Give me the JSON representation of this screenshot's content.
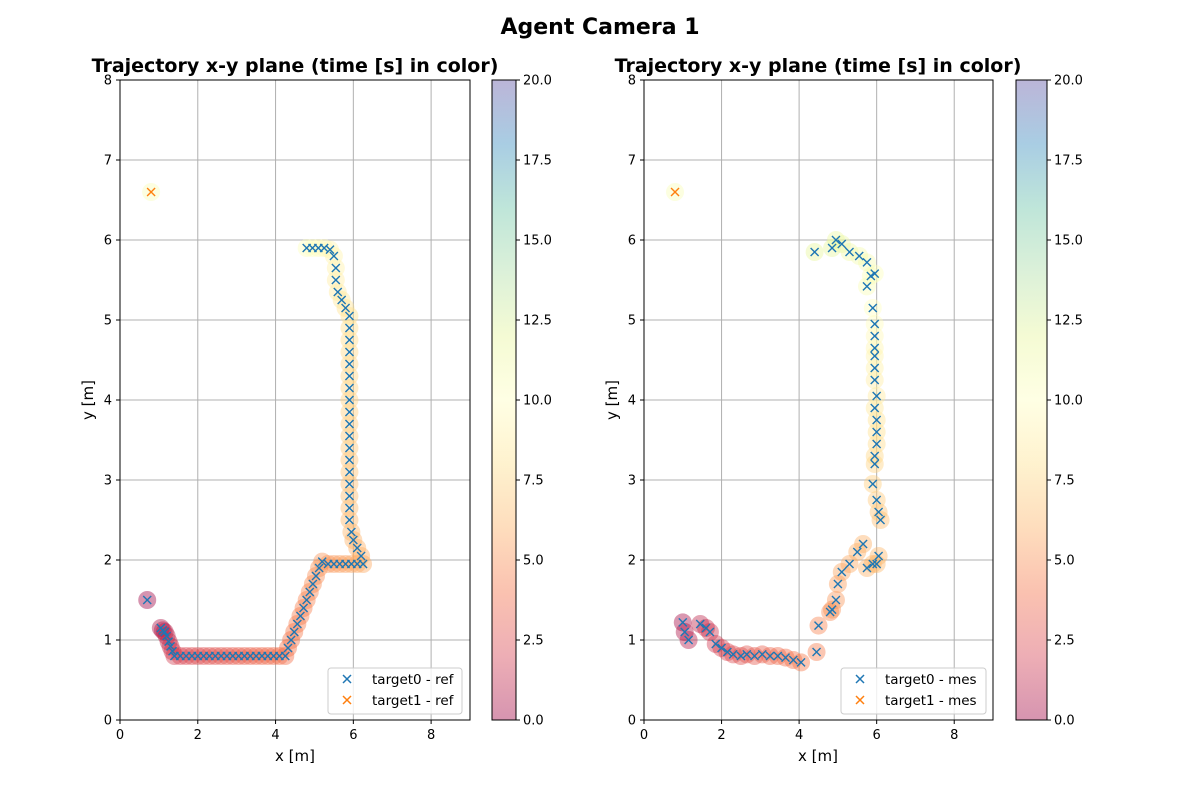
{
  "figure": {
    "suptitle": "Agent Camera 1"
  },
  "chart_data": [
    {
      "type": "scatter",
      "title": "Trajectory x-y plane  (time [s] in color)",
      "xlabel": "x [m]",
      "ylabel": "y [m]",
      "xlim": [
        0,
        9
      ],
      "ylim": [
        0,
        8
      ],
      "xticks": [
        "0",
        "2",
        "4",
        "6",
        "8"
      ],
      "yticks": [
        "0",
        "1",
        "2",
        "3",
        "4",
        "5",
        "6",
        "7",
        "8"
      ],
      "grid": true,
      "legend_position": "lower-right",
      "colorbar": {
        "cmap": "Spectral",
        "range": [
          0,
          20
        ],
        "ticks": [
          "0.0",
          "2.5",
          "5.0",
          "7.5",
          "10.0",
          "12.5",
          "15.0",
          "17.5",
          "20.0"
        ]
      },
      "series": [
        {
          "name": "target0 - ref",
          "marker_color": "#1f77b4",
          "points": [
            [
              0.7,
              1.5,
              0.0
            ],
            [
              1.05,
              1.15,
              0.5
            ],
            [
              1.1,
              1.12,
              0.7
            ],
            [
              1.15,
              1.1,
              0.9
            ],
            [
              1.2,
              1.05,
              1.1
            ],
            [
              1.25,
              0.98,
              1.3
            ],
            [
              1.3,
              0.92,
              1.5
            ],
            [
              1.35,
              0.86,
              1.7
            ],
            [
              1.4,
              0.8,
              1.9
            ],
            [
              1.55,
              0.8,
              2.1
            ],
            [
              1.7,
              0.8,
              2.2
            ],
            [
              1.85,
              0.8,
              2.3
            ],
            [
              2.0,
              0.8,
              2.4
            ],
            [
              2.15,
              0.8,
              2.5
            ],
            [
              2.3,
              0.8,
              2.6
            ],
            [
              2.45,
              0.8,
              2.7
            ],
            [
              2.6,
              0.8,
              2.8
            ],
            [
              2.75,
              0.8,
              2.9
            ],
            [
              2.9,
              0.8,
              3.0
            ],
            [
              3.05,
              0.8,
              3.1
            ],
            [
              3.2,
              0.8,
              3.2
            ],
            [
              3.35,
              0.8,
              3.3
            ],
            [
              3.5,
              0.8,
              3.4
            ],
            [
              3.65,
              0.8,
              3.5
            ],
            [
              3.8,
              0.8,
              3.6
            ],
            [
              3.95,
              0.8,
              3.7
            ],
            [
              4.1,
              0.8,
              3.8
            ],
            [
              4.25,
              0.8,
              3.9
            ],
            [
              4.32,
              0.9,
              4.0
            ],
            [
              4.4,
              1.0,
              4.1
            ],
            [
              4.48,
              1.1,
              4.2
            ],
            [
              4.56,
              1.2,
              4.3
            ],
            [
              4.64,
              1.3,
              4.4
            ],
            [
              4.72,
              1.4,
              4.5
            ],
            [
              4.8,
              1.5,
              4.6
            ],
            [
              4.88,
              1.6,
              4.7
            ],
            [
              4.96,
              1.7,
              4.8
            ],
            [
              5.04,
              1.8,
              4.9
            ],
            [
              5.12,
              1.9,
              5.0
            ],
            [
              5.2,
              1.98,
              5.1
            ],
            [
              5.35,
              1.95,
              5.2
            ],
            [
              5.5,
              1.95,
              5.3
            ],
            [
              5.65,
              1.95,
              5.4
            ],
            [
              5.8,
              1.95,
              5.5
            ],
            [
              5.95,
              1.95,
              5.6
            ],
            [
              6.1,
              1.95,
              5.7
            ],
            [
              6.25,
              1.95,
              5.8
            ],
            [
              6.2,
              2.05,
              5.9
            ],
            [
              6.1,
              2.15,
              6.0
            ],
            [
              6.0,
              2.25,
              6.1
            ],
            [
              5.95,
              2.35,
              6.2
            ],
            [
              5.9,
              2.5,
              6.3
            ],
            [
              5.9,
              2.65,
              6.4
            ],
            [
              5.9,
              2.8,
              6.5
            ],
            [
              5.9,
              2.95,
              6.6
            ],
            [
              5.9,
              3.1,
              6.7
            ],
            [
              5.9,
              3.25,
              6.8
            ],
            [
              5.9,
              3.4,
              6.9
            ],
            [
              5.9,
              3.55,
              7.0
            ],
            [
              5.9,
              3.7,
              7.1
            ],
            [
              5.9,
              3.85,
              7.2
            ],
            [
              5.9,
              4.0,
              7.3
            ],
            [
              5.9,
              4.15,
              7.4
            ],
            [
              5.9,
              4.3,
              7.5
            ],
            [
              5.9,
              4.45,
              7.6
            ],
            [
              5.9,
              4.6,
              7.7
            ],
            [
              5.9,
              4.75,
              7.8
            ],
            [
              5.9,
              4.9,
              7.9
            ],
            [
              5.9,
              5.05,
              8.0
            ],
            [
              5.8,
              5.15,
              8.2
            ],
            [
              5.7,
              5.25,
              8.4
            ],
            [
              5.6,
              5.35,
              8.6
            ],
            [
              5.55,
              5.5,
              8.8
            ],
            [
              5.55,
              5.65,
              9.0
            ],
            [
              5.5,
              5.8,
              9.2
            ],
            [
              5.4,
              5.88,
              9.4
            ],
            [
              5.25,
              5.9,
              9.6
            ],
            [
              5.1,
              5.9,
              9.8
            ],
            [
              4.95,
              5.9,
              10.0
            ],
            [
              4.8,
              5.9,
              10.2
            ]
          ]
        },
        {
          "name": "target1 - ref",
          "marker_color": "#ff7f0e",
          "points": [
            [
              0.8,
              6.6,
              10.5
            ]
          ]
        }
      ]
    },
    {
      "type": "scatter",
      "title": "Trajectory x-y plane  (time [s] in color)",
      "xlabel": "x [m]",
      "ylabel": "y [m]",
      "xlim": [
        0,
        9
      ],
      "ylim": [
        0,
        8
      ],
      "xticks": [
        "0",
        "2",
        "4",
        "6",
        "8"
      ],
      "yticks": [
        "0",
        "1",
        "2",
        "3",
        "4",
        "5",
        "6",
        "7",
        "8"
      ],
      "grid": true,
      "legend_position": "lower-right",
      "colorbar": {
        "cmap": "Spectral",
        "range": [
          0,
          20
        ],
        "ticks": [
          "0.0",
          "2.5",
          "5.0",
          "7.5",
          "10.0",
          "12.5",
          "15.0",
          "17.5",
          "20.0"
        ]
      },
      "series": [
        {
          "name": "target0 - mes",
          "marker_color": "#1f77b4",
          "points": [
            [
              1.0,
              1.22,
              0.2
            ],
            [
              1.05,
              1.1,
              0.5
            ],
            [
              1.15,
              1.0,
              0.8
            ],
            [
              1.45,
              1.2,
              1.1
            ],
            [
              1.6,
              1.15,
              1.4
            ],
            [
              1.7,
              1.1,
              1.6
            ],
            [
              1.85,
              0.95,
              1.8
            ],
            [
              2.0,
              0.9,
              2.0
            ],
            [
              2.15,
              0.85,
              2.2
            ],
            [
              2.3,
              0.82,
              2.4
            ],
            [
              2.5,
              0.8,
              2.6
            ],
            [
              2.65,
              0.82,
              2.8
            ],
            [
              2.85,
              0.8,
              3.0
            ],
            [
              3.05,
              0.82,
              3.2
            ],
            [
              3.25,
              0.8,
              3.4
            ],
            [
              3.45,
              0.8,
              3.6
            ],
            [
              3.65,
              0.78,
              3.8
            ],
            [
              3.85,
              0.75,
              4.0
            ],
            [
              4.05,
              0.72,
              4.2
            ],
            [
              4.45,
              0.85,
              4.4
            ],
            [
              4.5,
              1.18,
              4.6
            ],
            [
              4.8,
              1.35,
              4.8
            ],
            [
              4.85,
              1.38,
              5.0
            ],
            [
              4.95,
              1.5,
              5.2
            ],
            [
              5.0,
              1.7,
              5.4
            ],
            [
              5.1,
              1.85,
              5.6
            ],
            [
              5.3,
              1.95,
              5.8
            ],
            [
              5.5,
              2.1,
              5.9
            ],
            [
              5.65,
              2.2,
              6.0
            ],
            [
              5.75,
              1.9,
              6.1
            ],
            [
              5.9,
              1.95,
              6.2
            ],
            [
              6.05,
              2.05,
              6.3
            ],
            [
              6.0,
              1.95,
              6.4
            ],
            [
              6.1,
              2.5,
              6.6
            ],
            [
              6.05,
              2.6,
              6.8
            ],
            [
              6.0,
              2.75,
              7.0
            ],
            [
              5.9,
              2.95,
              7.2
            ],
            [
              5.95,
              3.2,
              7.4
            ],
            [
              5.95,
              3.3,
              7.6
            ],
            [
              6.0,
              3.45,
              7.8
            ],
            [
              6.0,
              3.6,
              8.0
            ],
            [
              6.0,
              3.75,
              8.2
            ],
            [
              5.95,
              3.9,
              8.4
            ],
            [
              6.0,
              4.05,
              8.6
            ],
            [
              5.95,
              4.25,
              8.8
            ],
            [
              5.95,
              4.4,
              9.0
            ],
            [
              5.95,
              4.55,
              9.2
            ],
            [
              5.95,
              4.65,
              9.4
            ],
            [
              5.95,
              4.8,
              9.6
            ],
            [
              5.95,
              4.95,
              9.8
            ],
            [
              5.9,
              5.15,
              10.0
            ],
            [
              5.95,
              5.58,
              10.2
            ],
            [
              5.85,
              5.55,
              10.4
            ],
            [
              5.75,
              5.42,
              10.6
            ],
            [
              5.75,
              5.72,
              10.8
            ],
            [
              5.55,
              5.8,
              11.0
            ],
            [
              5.3,
              5.85,
              11.2
            ],
            [
              5.1,
              5.95,
              11.4
            ],
            [
              4.95,
              6.0,
              11.6
            ],
            [
              4.85,
              5.9,
              11.8
            ],
            [
              4.4,
              5.85,
              12.0
            ]
          ]
        },
        {
          "name": "target1 - mes",
          "marker_color": "#ff7f0e",
          "points": [
            [
              0.8,
              6.6,
              10.5
            ]
          ]
        }
      ]
    }
  ]
}
